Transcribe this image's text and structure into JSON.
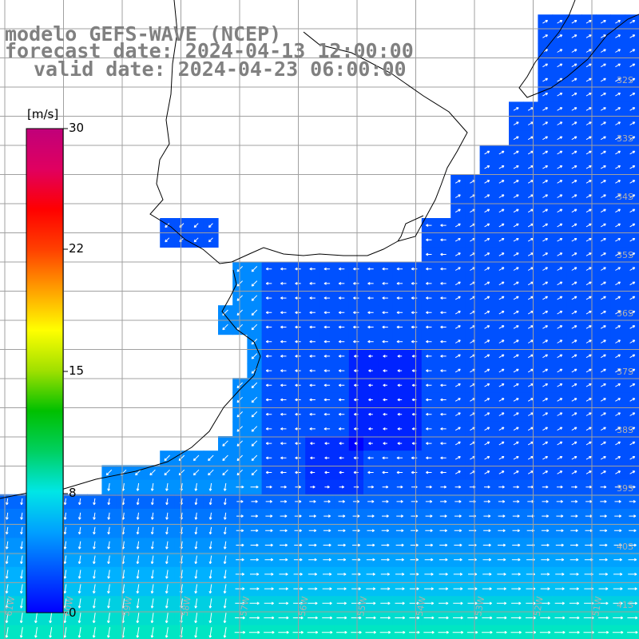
{
  "title": {
    "model": "modelo GEFS-WAVE (NCEP)",
    "forecast": "forecast date: 2024-04-13 12:00:00",
    "valid": "valid date: 2024-04-23 06:00:00"
  },
  "colorbar": {
    "unit": "[m/s]",
    "ticks": [
      "30",
      "22",
      "15",
      "8",
      "0"
    ],
    "tick_values": [
      30,
      22,
      15,
      8,
      0
    ],
    "colors": [
      "#0000ff",
      "#0050ff",
      "#00a0ff",
      "#00e6e6",
      "#00d060",
      "#00c000",
      "#a0e000",
      "#ffff00",
      "#ffa000",
      "#ff4000",
      "#ff0000",
      "#e00060",
      "#c0007a"
    ]
  },
  "map": {
    "lat_labels": [
      "32S",
      "33S",
      "34S",
      "35S",
      "36S",
      "37S",
      "38S",
      "39S",
      "40S",
      "41S"
    ],
    "lon_labels": [
      "61W",
      "60W",
      "59W",
      "58W",
      "57W",
      "56W",
      "55W",
      "54W",
      "53W",
      "52W",
      "51W"
    ],
    "colors": {
      "land": "#ffffff",
      "coast": "#000000",
      "grid": "#a0a0a0",
      "arrows": "#ffffff"
    }
  }
}
